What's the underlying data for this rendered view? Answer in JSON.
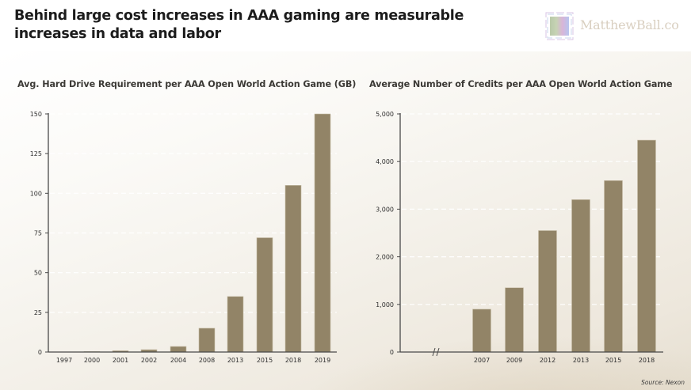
{
  "header": {
    "headline": "Behind large cost increases in AAA gaming are measurable increases in data and labor",
    "logo_text": "MatthewBall.co"
  },
  "colors": {
    "bar": "#928467",
    "bar_edge": "#c9bfa9",
    "axis": "#4a4a4a",
    "grid": "#ffffff"
  },
  "source": "Source: Nexon",
  "chart_data": [
    {
      "type": "bar",
      "title": "Avg. Hard Drive Requirement per AAA Open World Action Game (GB)",
      "xlabel": "",
      "ylabel": "",
      "categories": [
        "1997",
        "2000",
        "2001",
        "2002",
        "2004",
        "2008",
        "2013",
        "2015",
        "2018",
        "2019"
      ],
      "values": [
        0,
        0.3,
        0.8,
        1.5,
        3.5,
        15,
        35,
        72,
        105,
        150
      ],
      "ylim": [
        0,
        150
      ],
      "yticks": [
        0,
        25,
        50,
        75,
        100,
        125,
        150
      ],
      "ytick_labels": [
        "0",
        "25",
        "50",
        "75",
        "100",
        "125",
        "150"
      ],
      "grid": "horizontal dashed",
      "legend": "none"
    },
    {
      "type": "bar",
      "title": "Average Number of Credits per AAA Open World Action Game",
      "xlabel": "",
      "ylabel": "",
      "categories": [
        "2007",
        "2009",
        "2012",
        "2013",
        "2015",
        "2018"
      ],
      "values": [
        900,
        1350,
        2550,
        3200,
        3600,
        4450
      ],
      "ylim": [
        0,
        5000
      ],
      "yticks": [
        0,
        1000,
        2000,
        3000,
        4000,
        5000
      ],
      "ytick_labels": [
        "0",
        "1,000",
        "2,000",
        "3,000",
        "4,000",
        "5,000"
      ],
      "axis_break": true,
      "grid": "horizontal dashed",
      "legend": "none"
    }
  ]
}
